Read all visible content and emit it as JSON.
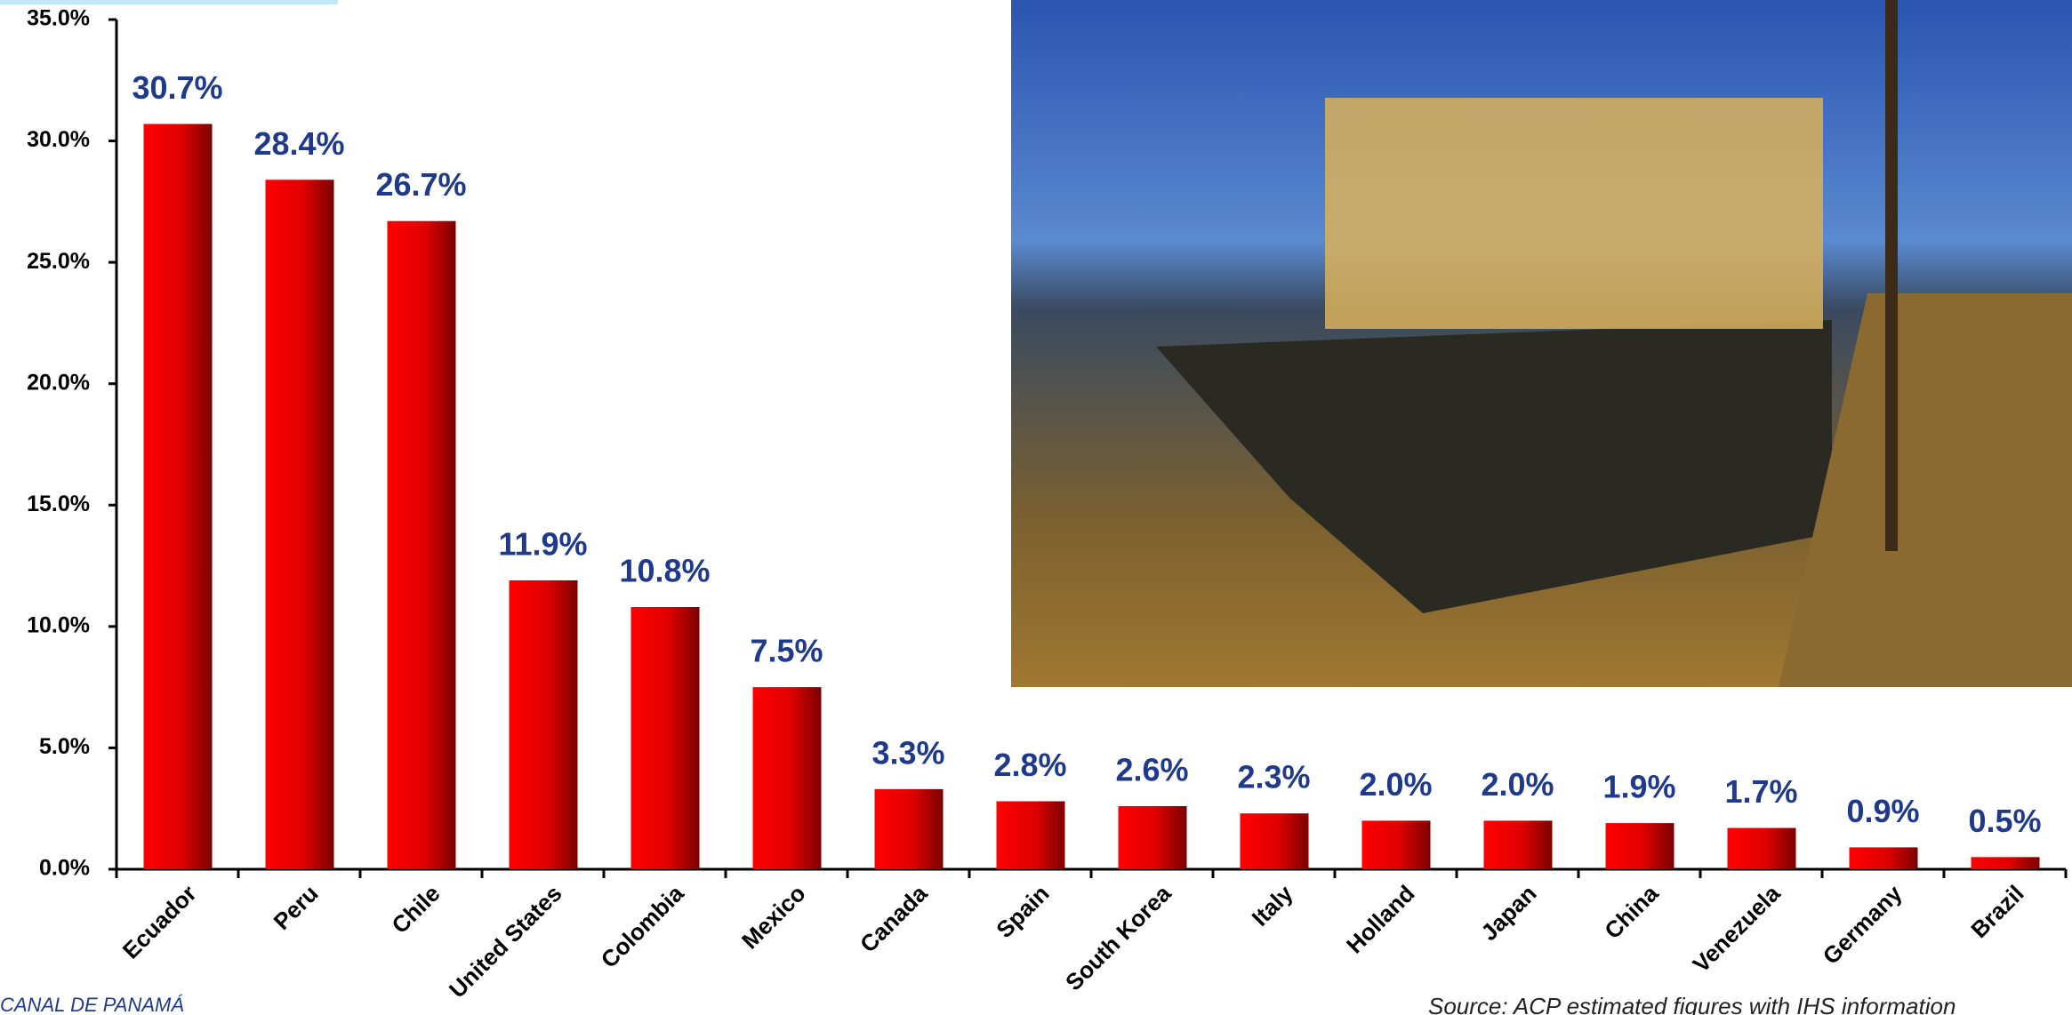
{
  "chart_data": {
    "type": "bar",
    "categories": [
      "Ecuador",
      "Peru",
      "Chile",
      "United States",
      "Colombia",
      "Mexico",
      "Canada",
      "Spain",
      "South Korea",
      "Italy",
      "Holland",
      "Japan",
      "China",
      "Venezuela",
      "Germany",
      "Brazil"
    ],
    "values": [
      30.7,
      28.4,
      26.7,
      11.9,
      10.8,
      7.5,
      3.3,
      2.8,
      2.6,
      2.3,
      2.0,
      2.0,
      1.9,
      1.7,
      0.9,
      0.5
    ],
    "value_labels": [
      "30.7%",
      "28.4%",
      "26.7%",
      "11.9%",
      "10.8%",
      "7.5%",
      "3.3%",
      "2.8%",
      "2.6%",
      "2.3%",
      "2.0%",
      "2.0%",
      "1.9%",
      "1.7%",
      "0.9%",
      "0.5%"
    ],
    "color": "#ff0000",
    "ylim": [
      0,
      35
    ],
    "yticks": [
      {
        "value": 0,
        "label": "0.0%"
      },
      {
        "value": 5,
        "label": "5.0%"
      },
      {
        "value": 10,
        "label": "10.0%"
      },
      {
        "value": 15,
        "label": "15.0%"
      },
      {
        "value": 20,
        "label": "20.0%"
      },
      {
        "value": 25,
        "label": "25.0%"
      },
      {
        "value": 30,
        "label": "30.0%"
      },
      {
        "value": 35,
        "label": "35.0%"
      }
    ],
    "logo_text": "CANAL DE PANAMÁ",
    "source": "Source: ACP estimated figures with IHS information"
  }
}
